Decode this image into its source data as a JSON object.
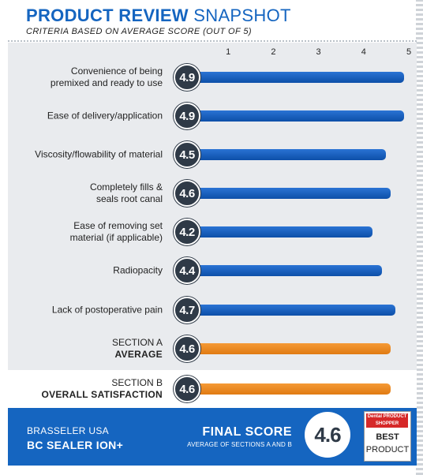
{
  "header": {
    "title_bold": "PRODUCT REVIEW",
    "title_light": "SNAPSHOT",
    "subtitle": "CRITERIA BASED ON AVERAGE SCORE (OUT OF 5)"
  },
  "colors": {
    "bar_blue": "#1a5fc0",
    "bar_orange": "#f08a24",
    "badge": "#2f3a47",
    "footer": "#1565c0"
  },
  "chart_data": {
    "type": "bar",
    "orientation": "horizontal",
    "title": "PRODUCT REVIEW SNAPSHOT",
    "subtitle": "CRITERIA BASED ON AVERAGE SCORE (OUT OF 5)",
    "xlim": [
      0,
      5
    ],
    "xticks": [
      "1",
      "2",
      "3",
      "4",
      "5"
    ],
    "categories": [
      "Convenience of being\npremixed and ready to use",
      "Ease of delivery/application",
      "Viscosity/flowability of material",
      "Completely fills &\nseals root canal",
      "Ease of removing set\nmaterial (if applicable)",
      "Radiopacity",
      "Lack of postoperative pain"
    ],
    "values": [
      4.9,
      4.9,
      4.5,
      4.6,
      4.2,
      4.4,
      4.7
    ],
    "value_labels": [
      "4.9",
      "4.9",
      "4.5",
      "4.6",
      "4.2",
      "4.4",
      "4.7"
    ],
    "sections": [
      {
        "line1": "SECTION A",
        "line2": "AVERAGE",
        "value": 4.6,
        "label": "4.6"
      },
      {
        "line1": "SECTION B",
        "line2": "OVERALL SATISFACTION",
        "value": 4.6,
        "label": "4.6"
      }
    ]
  },
  "footer": {
    "company": "BRASSELER USA",
    "product": "BC SEALER ION+",
    "final_score_label": "FINAL SCORE",
    "final_score_sub": "AVERAGE OF SECTIONS A AND B",
    "final_score": "4.6",
    "award_brand": "Dental PRODUCT SHOPPER",
    "award_best": "BEST",
    "award_product": "PRODUCT"
  }
}
